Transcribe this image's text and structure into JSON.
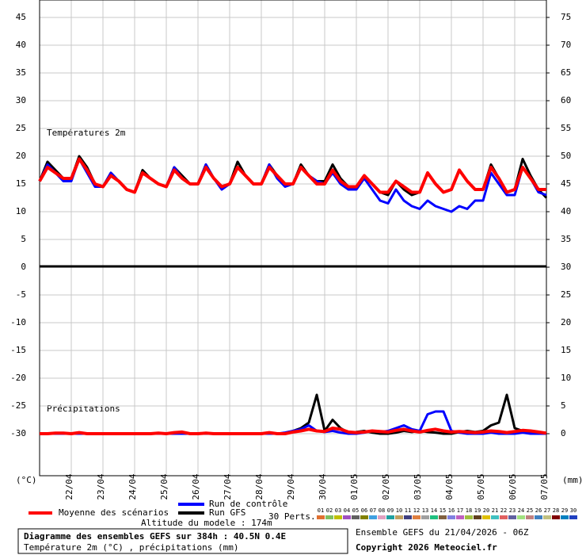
{
  "chart_data": {
    "type": "line",
    "title": "Diagramme des ensembles GEFS sur 384h : 40.5N 0.4E",
    "subtitle": "Température 2m (°C) , précipitations (mm)",
    "run_info": "Ensemble GEFS du 21/04/2026 - 06Z",
    "copyright": "Copyright 2026 Meteociel.fr",
    "altitude": "Altitude du modele : 174m",
    "temperature_label": "Températures 2m",
    "precipitation_label": "Précipitations",
    "ylabel": "(°C)",
    "y2label": "(mm)",
    "perturbations_label": "30 Perts.",
    "grid": true,
    "xlim": [
      0,
      384
    ],
    "xticks": [
      {
        "value": 24,
        "label": "22/04"
      },
      {
        "value": 48,
        "label": "23/04"
      },
      {
        "value": 72,
        "label": "24/04"
      },
      {
        "value": 96,
        "label": "25/04"
      },
      {
        "value": 120,
        "label": "26/04"
      },
      {
        "value": 144,
        "label": "27/04"
      },
      {
        "value": 168,
        "label": "28/04"
      },
      {
        "value": 192,
        "label": "29/04"
      },
      {
        "value": 216,
        "label": "30/04"
      },
      {
        "value": 240,
        "label": "01/05"
      },
      {
        "value": 264,
        "label": "02/05"
      },
      {
        "value": 288,
        "label": "03/05"
      },
      {
        "value": 312,
        "label": "04/05"
      },
      {
        "value": 336,
        "label": "05/05"
      },
      {
        "value": 360,
        "label": "06/05"
      },
      {
        "value": 384,
        "label": "07/05"
      }
    ],
    "ylim": [
      -37.57,
      48.14
    ],
    "yticks": [
      45,
      40,
      35,
      30,
      25,
      20,
      15,
      10,
      5,
      0,
      -5,
      -10,
      -15,
      -20,
      -25,
      -30
    ],
    "y2lim": [
      -7.57,
      78.14
    ],
    "y2ticks": [
      75,
      70,
      65,
      60,
      55,
      50,
      45,
      40,
      35,
      30,
      25,
      20,
      15,
      10,
      5,
      0
    ],
    "x": [
      0,
      6,
      12,
      18,
      24,
      30,
      36,
      42,
      48,
      54,
      60,
      66,
      72,
      78,
      84,
      90,
      96,
      102,
      108,
      114,
      120,
      126,
      132,
      138,
      144,
      150,
      156,
      162,
      168,
      174,
      180,
      186,
      192,
      198,
      204,
      210,
      216,
      222,
      228,
      234,
      240,
      246,
      252,
      258,
      264,
      270,
      276,
      282,
      288,
      294,
      300,
      306,
      312,
      318,
      324,
      330,
      336,
      342,
      348,
      354,
      360,
      366,
      372,
      378,
      384
    ],
    "series": [
      {
        "name": "Moyenne des scénarios",
        "color": "#ff0000",
        "temperature": [
          15.5,
          18,
          17,
          16,
          16,
          19.5,
          17.5,
          15,
          14.5,
          16.5,
          15.5,
          14,
          13.5,
          17,
          16,
          15,
          14.5,
          17.5,
          16,
          15,
          15,
          18,
          16,
          14.5,
          15,
          18,
          16.5,
          15,
          15,
          18,
          16.5,
          15,
          15,
          18,
          16.5,
          15,
          15,
          17.5,
          15.5,
          14.5,
          14.5,
          16.5,
          15,
          13.5,
          13.5,
          15.5,
          14.5,
          13.5,
          13.5,
          17,
          15,
          13.5,
          14,
          17.5,
          15.5,
          14,
          14,
          18,
          16,
          13.5,
          14,
          18,
          16,
          14,
          14
        ],
        "precipitation": [
          0,
          0,
          0.1,
          0.1,
          0,
          0.2,
          0,
          0,
          0,
          0,
          0,
          0,
          0,
          0,
          0,
          0.1,
          0,
          0.2,
          0.3,
          0,
          0,
          0.1,
          0,
          0,
          0,
          0,
          0,
          0,
          0,
          0.2,
          0,
          0,
          0.3,
          0.5,
          0.8,
          0.5,
          0.4,
          1,
          0.8,
          0.3,
          0.2,
          0.3,
          0.5,
          0.4,
          0.3,
          0.6,
          0.8,
          0.5,
          0.3,
          0.6,
          0.8,
          0.5,
          0.3,
          0.4,
          0.3,
          0.2,
          0.3,
          0.5,
          0.4,
          0.2,
          0.4,
          0.6,
          0.5,
          0.3,
          0.1
        ]
      },
      {
        "name": "Run de contrôle",
        "color": "#0000ff",
        "temperature": [
          15.5,
          18.5,
          17,
          15.5,
          15.5,
          19.5,
          17,
          14.5,
          14.5,
          17,
          15.5,
          14,
          13.5,
          17,
          16,
          15,
          14.5,
          18,
          16,
          15,
          15,
          18.5,
          16,
          14,
          15,
          18,
          16.5,
          15,
          15,
          18.5,
          16,
          14.5,
          15,
          18,
          16.5,
          15.5,
          15,
          17,
          15,
          14,
          14,
          16,
          14,
          12,
          11.5,
          14,
          12,
          11,
          10.5,
          12,
          11,
          10.5,
          10,
          11,
          10.5,
          12,
          12,
          17,
          15,
          13,
          13,
          18,
          16,
          13.5,
          13
        ],
        "precipitation": [
          0,
          0,
          0,
          0,
          0,
          0,
          0,
          0,
          0,
          0,
          0,
          0,
          0,
          0,
          0,
          0,
          0,
          0,
          0,
          0,
          0,
          0,
          0,
          0,
          0,
          0,
          0,
          0,
          0,
          0,
          0,
          0.2,
          0.5,
          0.8,
          1.5,
          0.5,
          0.3,
          0.5,
          0.2,
          0,
          0,
          0.2,
          0.5,
          0.3,
          0.5,
          1,
          1.5,
          0.8,
          0.5,
          3.5,
          4,
          4,
          0.5,
          0.2,
          0,
          0,
          0,
          0.2,
          0,
          0,
          0,
          0.2,
          0,
          0,
          0
        ]
      },
      {
        "name": "Run GFS",
        "color": "#000000",
        "temperature": [
          15.5,
          19,
          17.5,
          16,
          16,
          20,
          18,
          15,
          14.5,
          17,
          15.5,
          14,
          13.5,
          17.5,
          16,
          15,
          14.5,
          18,
          16.5,
          15,
          15,
          18.5,
          16,
          14.5,
          15,
          19,
          16.5,
          15,
          15,
          18.5,
          16.5,
          15,
          15,
          18.5,
          16.5,
          15.5,
          15.5,
          18.5,
          16,
          14.5,
          14.5,
          16.5,
          15,
          13.5,
          13,
          15.5,
          14,
          13,
          13.5,
          17,
          15,
          13.5,
          14,
          17.5,
          15.5,
          14,
          14,
          18.5,
          16,
          13.5,
          14,
          19.5,
          16.5,
          14,
          12.5
        ],
        "precipitation": [
          0,
          0,
          0,
          0,
          0,
          0,
          0,
          0,
          0,
          0,
          0,
          0,
          0,
          0,
          0,
          0,
          0,
          0,
          0,
          0,
          0,
          0,
          0,
          0,
          0,
          0,
          0,
          0,
          0,
          0,
          0,
          0,
          0.5,
          1,
          2,
          7,
          0.5,
          2.5,
          1,
          0.2,
          0.3,
          0.5,
          0.2,
          0,
          0,
          0.2,
          0.5,
          0.3,
          0.5,
          0.3,
          0.2,
          0,
          0,
          0.3,
          0.5,
          0.3,
          0.5,
          1.5,
          2,
          7,
          1,
          0.5,
          0.3,
          0.3,
          0
        ]
      }
    ],
    "perturbations": [
      {
        "label": "01",
        "color": "#e07030"
      },
      {
        "label": "02",
        "color": "#80c060"
      },
      {
        "label": "03",
        "color": "#c0c000"
      },
      {
        "label": "04",
        "color": "#a050c0"
      },
      {
        "label": "05",
        "color": "#606060"
      },
      {
        "label": "06",
        "color": "#808000"
      },
      {
        "label": "07",
        "color": "#40a0e0"
      },
      {
        "label": "08",
        "color": "#e0a0c0"
      },
      {
        "label": "09",
        "color": "#20a0a0"
      },
      {
        "label": "10",
        "color": "#c0a060"
      },
      {
        "label": "11",
        "color": "#404080"
      },
      {
        "label": "12",
        "color": "#e08040"
      },
      {
        "label": "13",
        "color": "#a0a0a0"
      },
      {
        "label": "14",
        "color": "#20c080"
      },
      {
        "label": "15",
        "color": "#806040"
      },
      {
        "label": "16",
        "color": "#8080e0"
      },
      {
        "label": "17",
        "color": "#c060c0"
      },
      {
        "label": "18",
        "color": "#a0c040"
      },
      {
        "label": "19",
        "color": "#604020"
      },
      {
        "label": "20",
        "color": "#e0c000"
      },
      {
        "label": "21",
        "color": "#40c0c0"
      },
      {
        "label": "22",
        "color": "#e06060"
      },
      {
        "label": "23",
        "color": "#6060a0"
      },
      {
        "label": "24",
        "color": "#a0e080"
      },
      {
        "label": "25",
        "color": "#c08080"
      },
      {
        "label": "26",
        "color": "#4080c0"
      },
      {
        "label": "27",
        "color": "#c0c080"
      },
      {
        "label": "28",
        "color": "#800000"
      },
      {
        "label": "29",
        "color": "#0080c0"
      },
      {
        "label": "30",
        "color": "#2040c0"
      }
    ]
  }
}
